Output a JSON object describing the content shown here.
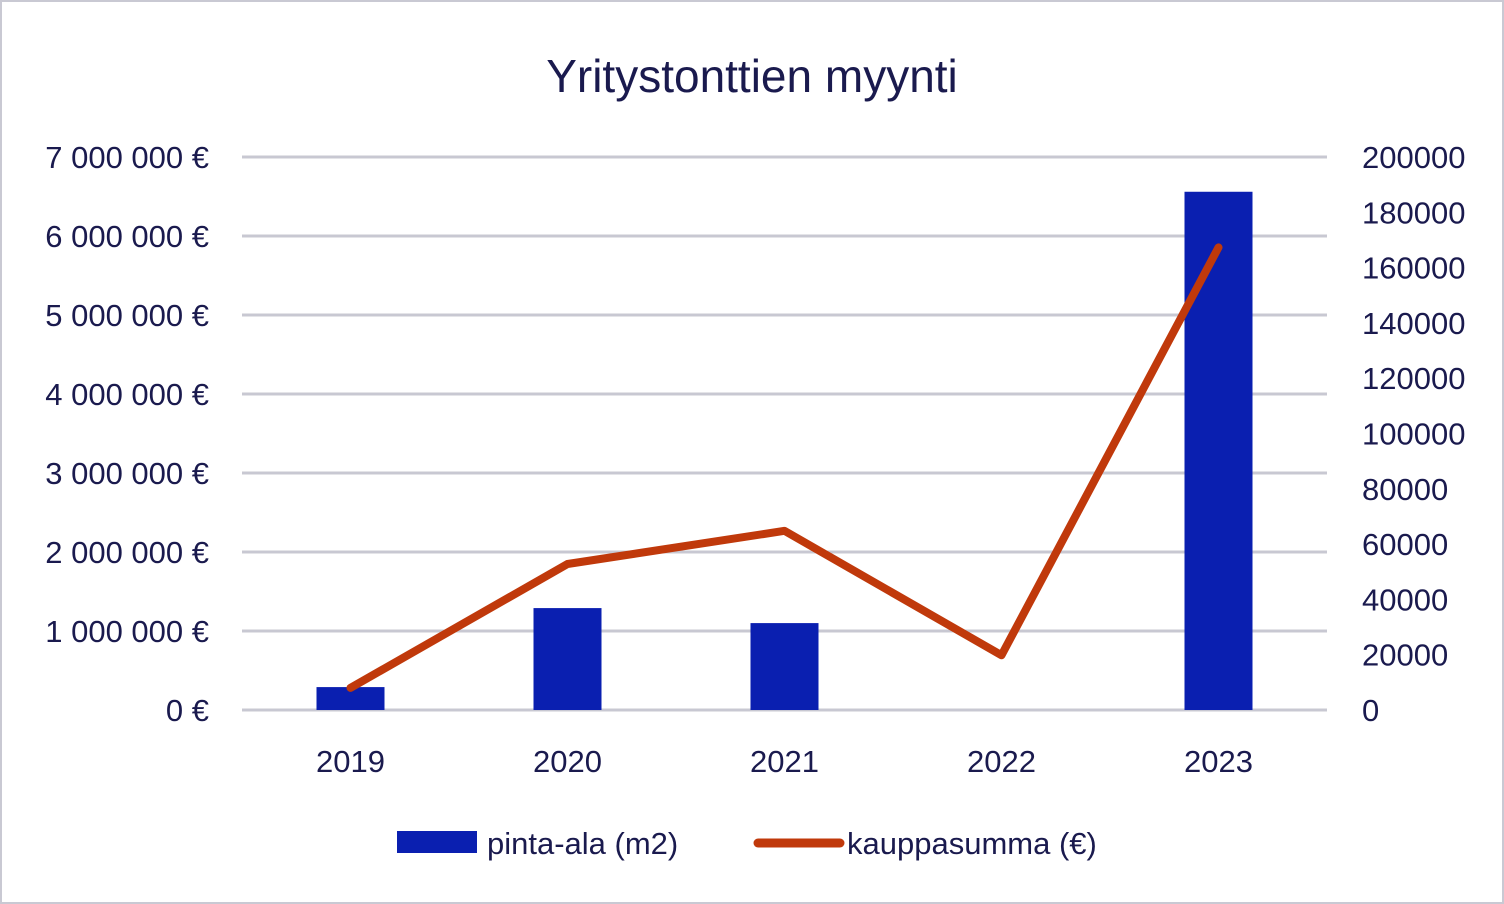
{
  "chart_data": {
    "type": "bar",
    "title": "Yritystonttien myynti",
    "categories": [
      "2019",
      "2020",
      "2021",
      "2022",
      "2023"
    ],
    "series": [
      {
        "name": "pinta-ala (m2)",
        "type": "bar",
        "axis": "left",
        "color": "#0a1fb0",
        "values": [
          290000,
          1290000,
          1100000,
          0,
          6560000
        ]
      },
      {
        "name": "kauppasumma (€)",
        "type": "line",
        "axis": "right",
        "color": "#c0390b",
        "values": [
          8000,
          52800,
          64800,
          19800,
          167300
        ]
      }
    ],
    "y_left": {
      "min": 0,
      "max": 7000000,
      "ticks": [
        0,
        1000000,
        2000000,
        3000000,
        4000000,
        5000000,
        6000000,
        7000000
      ],
      "tick_labels": [
        "0 €",
        "1 000 000 €",
        "2 000 000 €",
        "3 000 000 €",
        "4 000 000 €",
        "5 000 000 €",
        "6 000 000 €",
        "7 000 000 €"
      ]
    },
    "y_right": {
      "min": 0,
      "max": 200000,
      "ticks": [
        0,
        20000,
        40000,
        60000,
        80000,
        100000,
        120000,
        140000,
        160000,
        180000,
        200000
      ],
      "tick_labels": [
        "0",
        "20000",
        "40000",
        "60000",
        "80000",
        "100000",
        "120000",
        "140000",
        "160000",
        "180000",
        "200000"
      ]
    },
    "grid": true,
    "legend": "bottom"
  }
}
